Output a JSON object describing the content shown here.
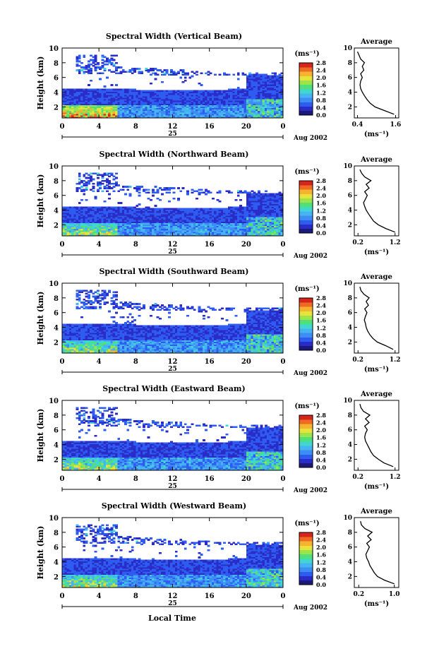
{
  "figure": {
    "xlabel": "Local Time",
    "average_title": "Average",
    "colorbar_unit": "(ms⁻¹)",
    "ylabel": "Height (km)",
    "date_number": "25",
    "date_label": "Aug 2002"
  },
  "colorbar": {
    "ticks": [
      "0.0",
      "0.4",
      "0.8",
      "1.2",
      "1.6",
      "2.0",
      "2.4",
      "2.8"
    ],
    "colors": [
      "#1b1a7a",
      "#2a2cc8",
      "#2f5cf0",
      "#3c8ef5",
      "#47b4f2",
      "#3fd7d0",
      "#4fe07a",
      "#9de44a",
      "#e6e33a",
      "#f5b330",
      "#ef6a23",
      "#d8251b"
    ]
  },
  "chart_data": [
    {
      "type": "heatmap",
      "title": "Spectral Width (Vertical Beam)",
      "x_ticks": [
        "0",
        "4",
        "8",
        "12",
        "16",
        "20",
        "0"
      ],
      "y_ticks": [
        "2",
        "4",
        "6",
        "8",
        "10"
      ],
      "xlim": [
        0,
        24
      ],
      "ylim": [
        0.5,
        10
      ],
      "colorbar_range": [
        0.0,
        2.8
      ],
      "profile": {
        "x_ticks": [
          "0.4",
          "1.6"
        ],
        "xlim": [
          0.3,
          1.7
        ],
        "heights": [
          1,
          1.5,
          2,
          2.5,
          3,
          3.5,
          4,
          4.5,
          5,
          5.5,
          6,
          6.5,
          7,
          7.5,
          8,
          8.5,
          9,
          9.5
        ],
        "values": [
          1.55,
          1.25,
          0.95,
          0.8,
          0.7,
          0.62,
          0.55,
          0.5,
          0.48,
          0.5,
          0.55,
          0.5,
          0.6,
          0.55,
          0.62,
          0.5,
          0.45,
          0.4
        ]
      }
    },
    {
      "type": "heatmap",
      "title": "Spectral Width (Northward Beam)",
      "x_ticks": [
        "0",
        "4",
        "8",
        "12",
        "16",
        "20",
        "0"
      ],
      "y_ticks": [
        "2",
        "4",
        "6",
        "8",
        "10"
      ],
      "xlim": [
        0,
        24
      ],
      "ylim": [
        0.5,
        10
      ],
      "colorbar_range": [
        0.0,
        2.8
      ],
      "profile": {
        "x_ticks": [
          "0.2",
          "1.2"
        ],
        "xlim": [
          0.1,
          1.3
        ],
        "heights": [
          1,
          1.5,
          2,
          2.5,
          3,
          3.5,
          4,
          4.5,
          5,
          5.5,
          6,
          6.5,
          7,
          7.5,
          8,
          8.5,
          9,
          9.5
        ],
        "values": [
          1.2,
          0.95,
          0.75,
          0.62,
          0.55,
          0.48,
          0.42,
          0.38,
          0.35,
          0.4,
          0.45,
          0.38,
          0.5,
          0.42,
          0.55,
          0.38,
          0.3,
          0.25
        ]
      }
    },
    {
      "type": "heatmap",
      "title": "Spectral Width (Southward Beam)",
      "x_ticks": [
        "0",
        "4",
        "8",
        "12",
        "16",
        "20",
        "0"
      ],
      "y_ticks": [
        "2",
        "4",
        "6",
        "8",
        "10"
      ],
      "xlim": [
        0,
        24
      ],
      "ylim": [
        0.5,
        10
      ],
      "colorbar_range": [
        0.0,
        2.8
      ],
      "profile": {
        "x_ticks": [
          "0.2",
          "1.2"
        ],
        "xlim": [
          0.1,
          1.3
        ],
        "heights": [
          1,
          1.5,
          2,
          2.5,
          3,
          3.5,
          4,
          4.5,
          5,
          5.5,
          6,
          6.5,
          7,
          7.5,
          8,
          8.5,
          9,
          9.5
        ],
        "values": [
          1.15,
          0.95,
          0.72,
          0.6,
          0.52,
          0.46,
          0.42,
          0.4,
          0.37,
          0.4,
          0.44,
          0.38,
          0.48,
          0.42,
          0.5,
          0.36,
          0.28,
          0.25
        ]
      }
    },
    {
      "type": "heatmap",
      "title": "Spectral Width (Eastward Beam)",
      "x_ticks": [
        "0",
        "4",
        "8",
        "12",
        "16",
        "20",
        "0"
      ],
      "y_ticks": [
        "2",
        "4",
        "6",
        "8",
        "10"
      ],
      "xlim": [
        0,
        24
      ],
      "ylim": [
        0.5,
        10
      ],
      "colorbar_range": [
        0.0,
        2.8
      ],
      "profile": {
        "x_ticks": [
          "0.2",
          "1.2"
        ],
        "xlim": [
          0.1,
          1.3
        ],
        "heights": [
          1,
          1.5,
          2,
          2.5,
          3,
          3.5,
          4,
          4.5,
          5,
          5.5,
          6,
          6.5,
          7,
          7.5,
          8,
          8.5,
          9,
          9.5
        ],
        "values": [
          1.15,
          0.9,
          0.75,
          0.62,
          0.55,
          0.5,
          0.45,
          0.4,
          0.38,
          0.4,
          0.45,
          0.38,
          0.5,
          0.4,
          0.52,
          0.35,
          0.28,
          0.25
        ]
      }
    },
    {
      "type": "heatmap",
      "title": "Spectral Width (Westward Beam)",
      "x_ticks": [
        "0",
        "4",
        "8",
        "12",
        "16",
        "20",
        "0"
      ],
      "y_ticks": [
        "2",
        "4",
        "6",
        "8",
        "10"
      ],
      "xlim": [
        0,
        24
      ],
      "ylim": [
        0.5,
        10
      ],
      "colorbar_range": [
        0.0,
        2.8
      ],
      "profile": {
        "x_ticks": [
          "0.2",
          "1.0"
        ],
        "xlim": [
          0.1,
          1.1
        ],
        "heights": [
          1,
          1.5,
          2,
          2.5,
          3,
          3.5,
          4,
          4.5,
          5,
          5.5,
          6,
          6.5,
          7,
          7.5,
          8,
          8.5,
          9,
          9.5
        ],
        "values": [
          1.0,
          0.78,
          0.62,
          0.55,
          0.5,
          0.45,
          0.42,
          0.38,
          0.36,
          0.4,
          0.44,
          0.38,
          0.48,
          0.4,
          0.5,
          0.34,
          0.26,
          0.24
        ]
      }
    }
  ]
}
